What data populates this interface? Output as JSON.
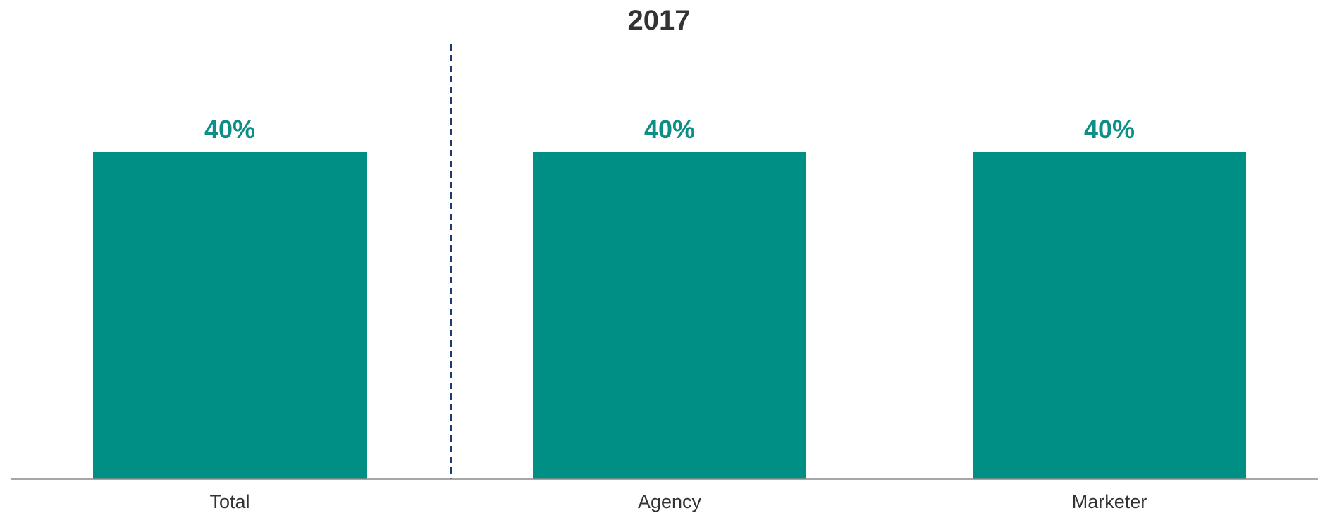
{
  "chart_data": {
    "type": "bar",
    "title": "2017",
    "categories": [
      "Total",
      "Agency",
      "Marketer"
    ],
    "values": [
      40,
      40,
      40
    ],
    "data_labels": [
      "40%",
      "40%",
      "40%"
    ],
    "xlabel": "",
    "ylabel": "",
    "ylim": [
      0,
      50
    ],
    "grid": false,
    "legend": "none",
    "separator_after_category": "Total",
    "colors": {
      "bar": "#008f85",
      "label": "#0d8f87",
      "title": "#333333",
      "category_text": "#333333",
      "baseline": "#8a8a8a",
      "separator": "#1f3a6e"
    }
  }
}
